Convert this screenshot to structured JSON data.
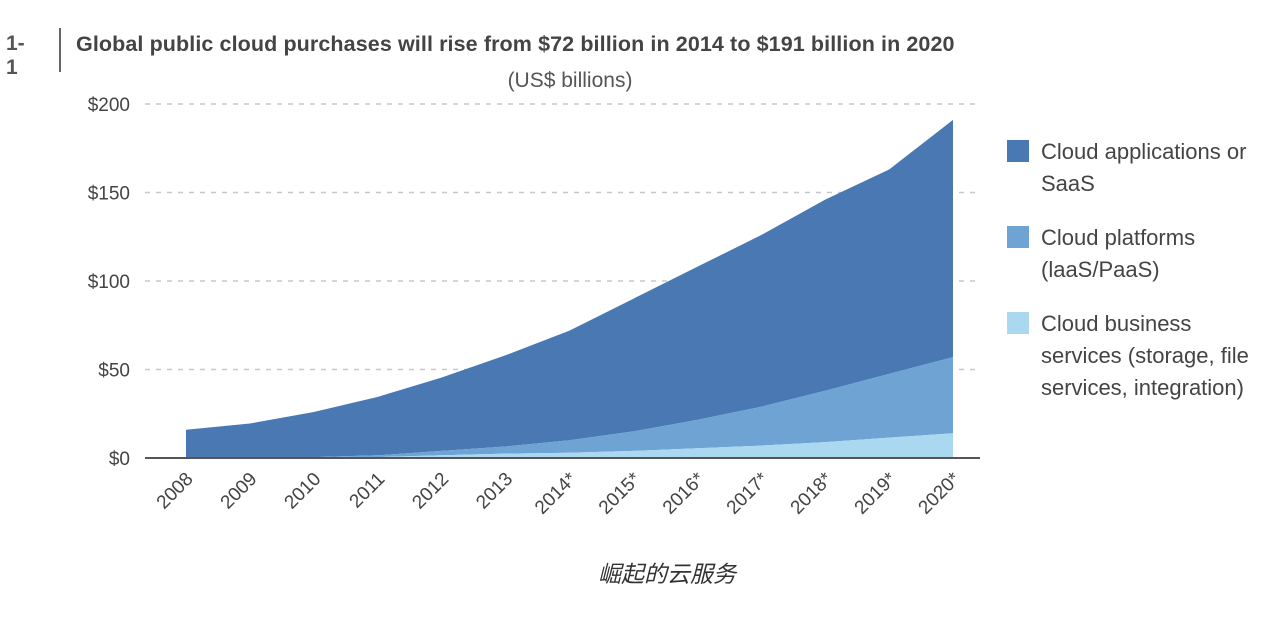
{
  "header": {
    "figure_number": "1-1",
    "title": "Global public cloud purchases will rise from $72 billion in 2014 to $191 billion in 2020",
    "subtitle": "(US$ billions)"
  },
  "caption": "崛起的云服务",
  "colors": {
    "saas": "#4a78b2",
    "platforms": "#6ea3d4",
    "business_services": "#a9d8f0",
    "grid": "#c8c8c8",
    "axis": "#555555"
  },
  "chart_data": {
    "type": "area",
    "stacked": true,
    "title": "Global public cloud purchases will rise from $72 billion in 2014 to $191 billion in 2020",
    "subtitle": "(US$ billions)",
    "categories": [
      "2008",
      "2009",
      "2010",
      "2011",
      "2012",
      "2013",
      "2014*",
      "2015*",
      "2016*",
      "2017*",
      "2018*",
      "2019*",
      "2020*"
    ],
    "series": [
      {
        "name": "Cloud business services (storage, file services, integration)",
        "values": [
          0,
          0,
          0,
          0.5,
          1.5,
          2.5,
          3,
          4,
          5.5,
          7,
          9,
          11.5,
          14
        ]
      },
      {
        "name": "Cloud platforms (IaaS/PaaS)",
        "values": [
          0,
          0,
          0.5,
          1,
          2.5,
          4,
          7,
          11,
          16,
          22,
          29,
          36,
          43
        ]
      },
      {
        "name": "Cloud applications or SaaS",
        "values": [
          16,
          19.5,
          25.5,
          33,
          41.5,
          51.5,
          62,
          75,
          86.5,
          97,
          108,
          115.5,
          134
        ]
      }
    ],
    "ylim": [
      0,
      200
    ],
    "yticks": [
      0,
      50,
      100,
      150,
      200
    ],
    "ytick_labels": [
      "$0",
      "$50",
      "$100",
      "$150",
      "$200"
    ],
    "grid": "horizontal dashed",
    "legend_position": "right"
  },
  "legend": [
    {
      "label": "Cloud applications or SaaS",
      "color_key": "saas"
    },
    {
      "label": "Cloud platforms (laaS/PaaS)",
      "color_key": "platforms"
    },
    {
      "label": "Cloud business services (storage, file services, integration)",
      "color_key": "business_services"
    }
  ]
}
